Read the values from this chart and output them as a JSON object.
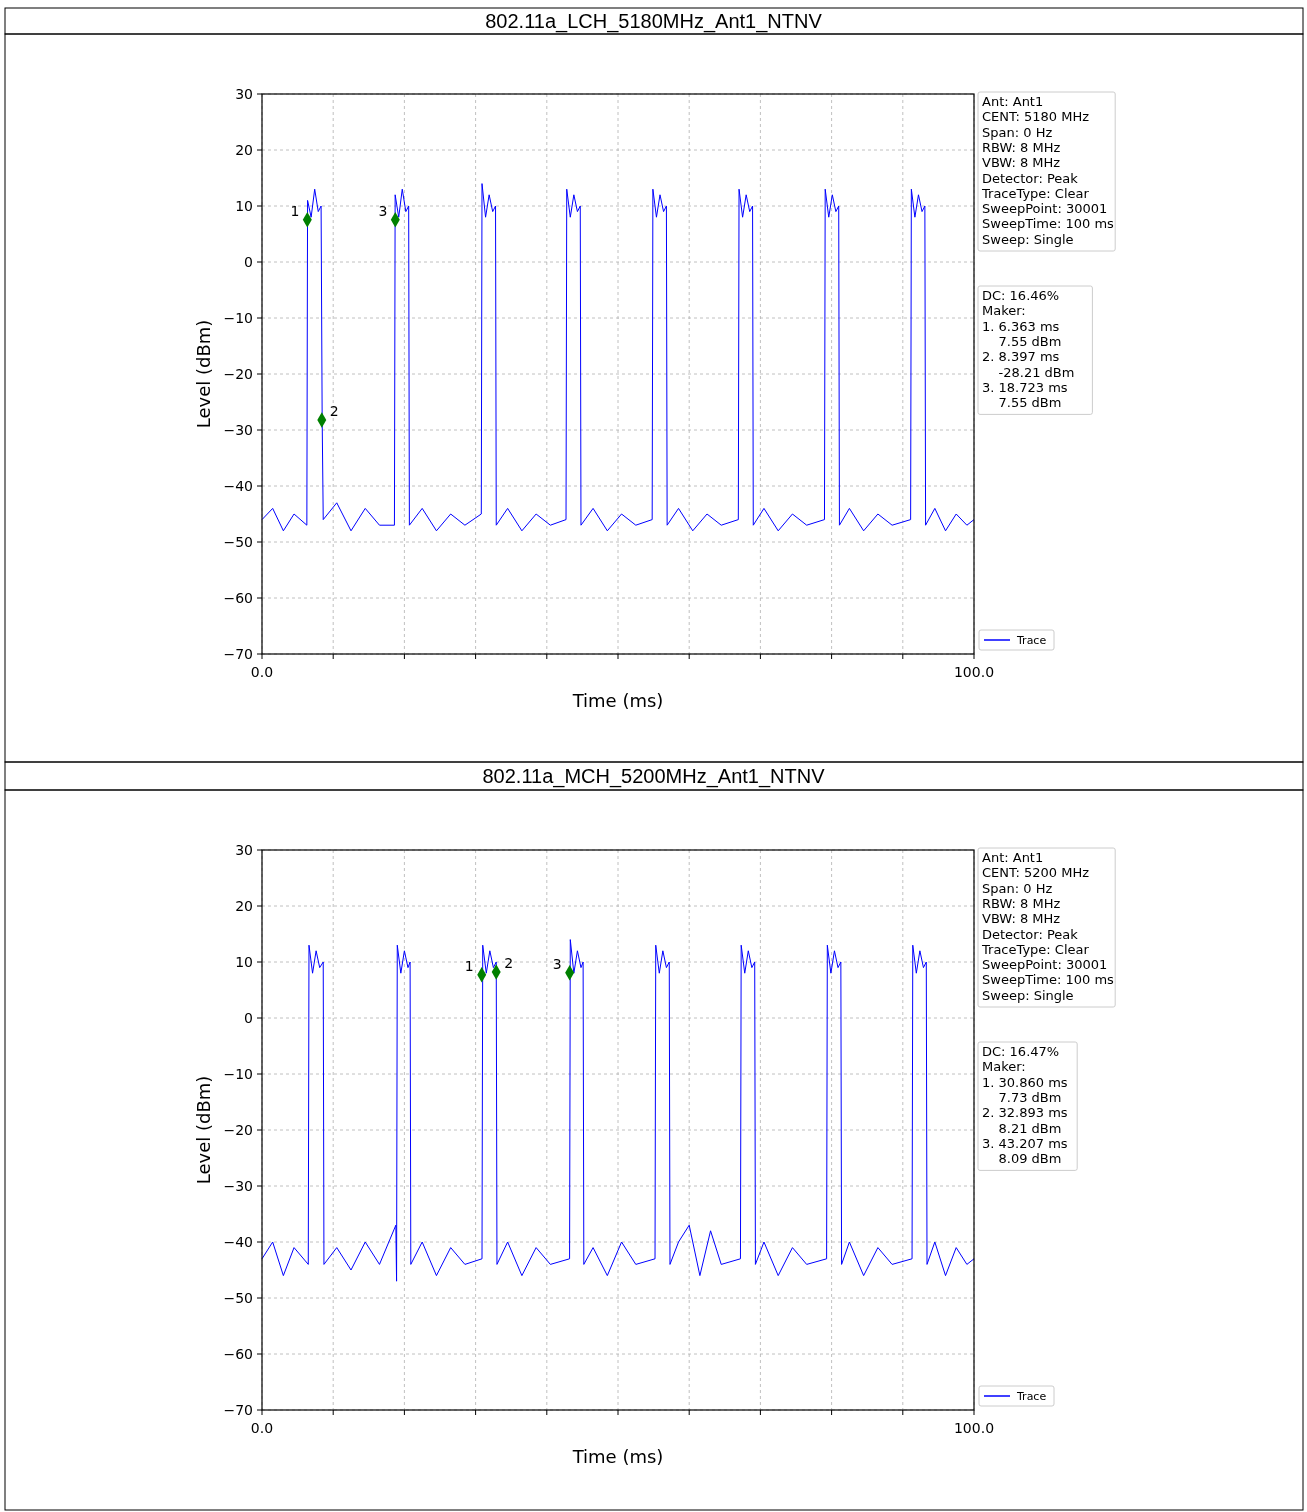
{
  "chart_data": [
    {
      "type": "line",
      "title": "802.11a_LCH_5180MHz_Ant1_NTNV",
      "xlabel": "Time (ms)",
      "ylabel": "Level (dBm)",
      "xlim": [
        0,
        100
      ],
      "ylim": [
        -70,
        30
      ],
      "xticks": [
        {
          "value": 0,
          "label": "0.0"
        },
        {
          "value": 10,
          "label": null
        },
        {
          "value": 20,
          "label": null
        },
        {
          "value": 30,
          "label": null
        },
        {
          "value": 40,
          "label": null
        },
        {
          "value": 50,
          "label": null
        },
        {
          "value": 60,
          "label": null
        },
        {
          "value": 70,
          "label": null
        },
        {
          "value": 80,
          "label": null
        },
        {
          "value": 90,
          "label": null
        },
        {
          "value": 100,
          "label": "100.0"
        }
      ],
      "yticks": [
        {
          "value": -70,
          "label": "−70"
        },
        {
          "value": -60,
          "label": "−60"
        },
        {
          "value": -50,
          "label": "−50"
        },
        {
          "value": -40,
          "label": "−40"
        },
        {
          "value": -30,
          "label": "−30"
        },
        {
          "value": -20,
          "label": "−20"
        },
        {
          "value": -10,
          "label": "−10"
        },
        0,
        10,
        20,
        30
      ],
      "grid": true,
      "legend": "bottom right",
      "series": [
        {
          "name": "Trace",
          "color": "#0000ff",
          "marker": "none",
          "x": [
            0,
            1.5,
            3,
            4.5,
            6.3,
            6.4,
            6.9,
            7.4,
            7.9,
            8.3,
            8.45,
            8.6,
            10.5,
            12.5,
            14.5,
            16.5,
            18.6,
            18.7,
            19.2,
            19.7,
            20.2,
            20.6,
            20.7,
            22.5,
            24.5,
            26.5,
            28.5,
            30.8,
            30.9,
            31.4,
            31.9,
            32.4,
            32.8,
            32.9,
            34.5,
            36.5,
            38.5,
            40.5,
            42.7,
            42.8,
            43.3,
            43.8,
            44.3,
            44.7,
            44.8,
            46.5,
            48.5,
            50.5,
            52.5,
            54.8,
            54.9,
            55.4,
            55.9,
            56.4,
            56.8,
            56.9,
            58.5,
            60.5,
            62.5,
            64.5,
            66.9,
            67.0,
            67.5,
            68.0,
            68.5,
            68.9,
            69.0,
            70.5,
            72.5,
            74.5,
            76.5,
            79.0,
            79.1,
            79.6,
            80.1,
            80.6,
            81.0,
            81.1,
            82.5,
            84.5,
            86.5,
            88.5,
            91.1,
            91.2,
            91.7,
            92.2,
            92.7,
            93.1,
            93.2,
            94.5,
            96,
            97.5,
            99,
            100
          ],
          "values": [
            -46,
            -44,
            -48,
            -45,
            -47,
            11,
            8,
            13,
            9,
            10,
            -28,
            -46,
            -43,
            -48,
            -44,
            -47,
            -47,
            12,
            8,
            13,
            9,
            10,
            -47,
            -44,
            -48,
            -45,
            -47,
            -45,
            14,
            8,
            12,
            9,
            10,
            -47,
            -44,
            -48,
            -45,
            -47,
            -46,
            13,
            8,
            12,
            9,
            10,
            -47,
            -44,
            -48,
            -45,
            -47,
            -46,
            13,
            8,
            12,
            9,
            10,
            -47,
            -44,
            -48,
            -45,
            -47,
            -46,
            13,
            8,
            12,
            9,
            10,
            -47,
            -44,
            -48,
            -45,
            -47,
            -46,
            13,
            8,
            12,
            9,
            10,
            -47,
            -44,
            -48,
            -45,
            -47,
            -46,
            13,
            8,
            12,
            9,
            10,
            -47,
            -44,
            -48,
            -45,
            -47,
            -46
          ]
        },
        {
          "type": "scatter",
          "color": "#008000",
          "marker": "diamond",
          "x": [
            6.363,
            8.397,
            18.723
          ],
          "values": [
            7.55,
            -28.21,
            7.55
          ]
        }
      ],
      "annotations": [
        "Ant: Ant1\nCENT: 5180 MHz\nSpan: 0 Hz\nRBW: 8 MHz\nVBW: 8 MHz\nDetector: Peak\nTraceType: Clear\nSweepPoint: 30001\nSweepTime: 100 ms\nSweep: Single",
        "DC: 16.46%\nMaker:\n1. 6.363 ms\n    7.55 dBm\n2. 8.397 ms\n    -28.21 dBm\n3. 18.723 ms\n    7.55 dBm",
        {
          "text": "1",
          "x": 6.363,
          "y": 7.55
        },
        {
          "text": "2",
          "x": 8.397,
          "y": -28.21
        },
        {
          "text": "3",
          "x": 18.723,
          "y": 7.55
        }
      ]
    },
    {
      "type": "line",
      "title": "802.11a_MCH_5200MHz_Ant1_NTNV",
      "xlabel": "Time (ms)",
      "ylabel": "Level (dBm)",
      "xlim": [
        0,
        100
      ],
      "ylim": [
        -70,
        30
      ],
      "xticks": [
        {
          "value": 0,
          "label": "0.0"
        },
        {
          "value": 10,
          "label": null
        },
        {
          "value": 20,
          "label": null
        },
        {
          "value": 30,
          "label": null
        },
        {
          "value": 40,
          "label": null
        },
        {
          "value": 50,
          "label": null
        },
        {
          "value": 60,
          "label": null
        },
        {
          "value": 70,
          "label": null
        },
        {
          "value": 80,
          "label": null
        },
        {
          "value": 90,
          "label": null
        },
        {
          "value": 100,
          "label": "100.0"
        }
      ],
      "yticks": [
        {
          "value": -70,
          "label": "−70"
        },
        {
          "value": -60,
          "label": "−60"
        },
        {
          "value": -50,
          "label": "−50"
        },
        {
          "value": -40,
          "label": "−40"
        },
        {
          "value": -30,
          "label": "−30"
        },
        {
          "value": -20,
          "label": "−20"
        },
        {
          "value": -10,
          "label": "−10"
        },
        0,
        10,
        20,
        30
      ],
      "grid": true,
      "legend": "bottom right",
      "series": [
        {
          "name": "Trace",
          "color": "#0000ff",
          "marker": "none",
          "x": [
            0,
            1.5,
            3,
            4.5,
            6.5,
            6.6,
            7.1,
            7.6,
            8.1,
            8.6,
            8.7,
            10.5,
            12.5,
            14.5,
            16.5,
            18.8,
            18.9,
            19.0,
            19.5,
            20.0,
            20.5,
            20.8,
            20.9,
            22.5,
            24.5,
            26.5,
            28.5,
            30.9,
            31.0,
            31.5,
            32.0,
            32.5,
            32.9,
            33.0,
            34.5,
            36.5,
            38.5,
            40.5,
            43.2,
            43.3,
            43.8,
            44.3,
            44.8,
            45.1,
            45.2,
            46.5,
            48.5,
            50.5,
            52.5,
            55.2,
            55.3,
            55.8,
            56.3,
            56.8,
            57.2,
            57.3,
            58.5,
            60,
            61.5,
            63,
            64.5,
            67.2,
            67.3,
            67.8,
            68.3,
            68.8,
            69.2,
            69.3,
            70.5,
            72.5,
            74.5,
            76.5,
            79.3,
            79.4,
            79.9,
            80.4,
            80.9,
            81.3,
            81.4,
            82.5,
            84.5,
            86.5,
            88.5,
            91.3,
            91.4,
            91.9,
            92.4,
            92.9,
            93.3,
            93.4,
            94.5,
            96,
            97.5,
            99,
            100
          ],
          "values": [
            -43,
            -40,
            -46,
            -41,
            -44,
            13,
            8,
            12,
            9,
            10,
            -44,
            -41,
            -45,
            -40,
            -44,
            -37,
            -47,
            13,
            8,
            12,
            9,
            10,
            -44,
            -40,
            -46,
            -41,
            -44,
            -43,
            13,
            8,
            12,
            9,
            10,
            -44,
            -40,
            -46,
            -41,
            -44,
            -43,
            14,
            8,
            12,
            9,
            10,
            -44,
            -41,
            -46,
            -40,
            -44,
            -43,
            13,
            8,
            12,
            9,
            10,
            -44,
            -40,
            -37,
            -46,
            -38,
            -44,
            -43,
            13,
            8,
            12,
            9,
            10,
            -44,
            -40,
            -46,
            -41,
            -44,
            -43,
            13,
            8,
            12,
            9,
            10,
            -44,
            -40,
            -46,
            -41,
            -44,
            -43,
            13,
            8,
            12,
            9,
            10,
            -44,
            -40,
            -46,
            -41,
            -44,
            -43
          ]
        },
        {
          "type": "scatter",
          "color": "#008000",
          "marker": "diamond",
          "x": [
            30.86,
            32.893,
            43.207
          ],
          "values": [
            7.73,
            8.21,
            8.09
          ]
        }
      ],
      "annotations": [
        "Ant: Ant1\nCENT: 5200 MHz\nSpan: 0 Hz\nRBW: 8 MHz\nVBW: 8 MHz\nDetector: Peak\nTraceType: Clear\nSweepPoint: 30001\nSweepTime: 100 ms\nSweep: Single",
        "DC: 16.47%\nMaker:\n1. 30.860 ms\n    7.73 dBm\n2. 32.893 ms\n    8.21 dBm\n3. 43.207 ms\n    8.09 dBm",
        {
          "text": "1",
          "x": 30.86,
          "y": 7.73
        },
        {
          "text": "2",
          "x": 32.893,
          "y": 8.21
        },
        {
          "text": "3",
          "x": 43.207,
          "y": 8.09
        }
      ]
    }
  ]
}
